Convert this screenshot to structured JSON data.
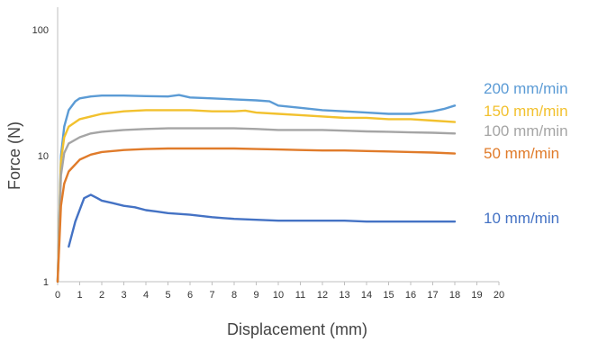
{
  "chart_data": {
    "type": "line",
    "xlabel": "Displacement (mm)",
    "ylabel": "Force (N)",
    "xlim": [
      0,
      20
    ],
    "ylim": [
      1,
      100
    ],
    "y_scale": "log",
    "grid": false,
    "x_ticks": [
      "0",
      "1",
      "2",
      "3",
      "4",
      "5",
      "6",
      "7",
      "8",
      "9",
      "10",
      "11",
      "12",
      "13",
      "14",
      "15",
      "16",
      "17",
      "18",
      "19",
      "20"
    ],
    "y_ticks": [
      {
        "label": "100",
        "value": 100
      },
      {
        "label": "10",
        "value": 10
      },
      {
        "label": "1",
        "value": 1
      }
    ],
    "legend_placement": "right, each label beside the end of its curve",
    "series": [
      {
        "name": "200 mm/min",
        "color": "#5b9bd5",
        "x": [
          0,
          0.15,
          0.3,
          0.5,
          0.8,
          1,
          1.5,
          2,
          3,
          4,
          5,
          5.5,
          6,
          7,
          8,
          9,
          9.6,
          10,
          11,
          12,
          13,
          14,
          15,
          16,
          17,
          17.5,
          18
        ],
        "y": [
          1,
          10,
          17,
          23,
          27,
          28.5,
          29.5,
          30,
          30,
          29.7,
          29.5,
          30.3,
          29,
          28.5,
          28,
          27.5,
          27,
          25,
          24,
          23,
          22.5,
          22,
          21.5,
          21.5,
          22.5,
          23.5,
          25
        ]
      },
      {
        "name": "150 mm/min",
        "color": "#f2c12e",
        "x": [
          0,
          0.15,
          0.3,
          0.5,
          1,
          1.5,
          2,
          3,
          4,
          5,
          6,
          7,
          8,
          8.5,
          9,
          10,
          11,
          12,
          13,
          14,
          15,
          16,
          17,
          18
        ],
        "y": [
          1,
          9,
          14,
          17,
          19.5,
          20.5,
          21.5,
          22.5,
          23,
          23,
          23,
          22.5,
          22.5,
          22.8,
          22,
          21.5,
          21,
          20.5,
          20,
          20,
          19.5,
          19.5,
          19,
          18.5
        ]
      },
      {
        "name": "100 mm/min",
        "color": "#a5a5a5",
        "x": [
          0,
          0.15,
          0.3,
          0.5,
          1,
          1.5,
          2,
          3,
          4,
          5,
          6,
          7,
          8,
          9,
          10,
          11,
          12,
          13,
          14,
          15,
          16,
          17,
          18
        ],
        "y": [
          1,
          7,
          10.5,
          12.5,
          14,
          15,
          15.5,
          16,
          16.3,
          16.5,
          16.5,
          16.5,
          16.5,
          16.3,
          16,
          16,
          16,
          15.8,
          15.6,
          15.5,
          15.3,
          15.2,
          15
        ]
      },
      {
        "name": "50 mm/min",
        "color": "#e07b2a",
        "x": [
          0,
          0.15,
          0.3,
          0.5,
          1,
          1.5,
          2,
          3,
          4,
          5,
          6,
          7,
          8,
          9,
          10,
          11,
          12,
          13,
          14,
          15,
          16,
          17,
          18
        ],
        "y": [
          1,
          4,
          6,
          7.5,
          9.3,
          10.2,
          10.7,
          11.1,
          11.3,
          11.4,
          11.4,
          11.4,
          11.4,
          11.3,
          11.2,
          11.1,
          11,
          11,
          10.9,
          10.8,
          10.7,
          10.6,
          10.4
        ]
      },
      {
        "name": "10 mm/min",
        "color": "#4472c4",
        "x": [
          0.5,
          0.8,
          1.2,
          1.5,
          1.8,
          2,
          2.5,
          3,
          3.5,
          4,
          4.5,
          5,
          5.5,
          6,
          7,
          7.5,
          8,
          9,
          10,
          11,
          12,
          13,
          14,
          15,
          16,
          17,
          18
        ],
        "y": [
          1.9,
          3,
          4.6,
          4.9,
          4.6,
          4.4,
          4.2,
          4,
          3.9,
          3.7,
          3.6,
          3.5,
          3.45,
          3.4,
          3.25,
          3.2,
          3.15,
          3.1,
          3.05,
          3.05,
          3.05,
          3.05,
          3,
          3,
          3,
          3,
          3
        ]
      }
    ]
  }
}
